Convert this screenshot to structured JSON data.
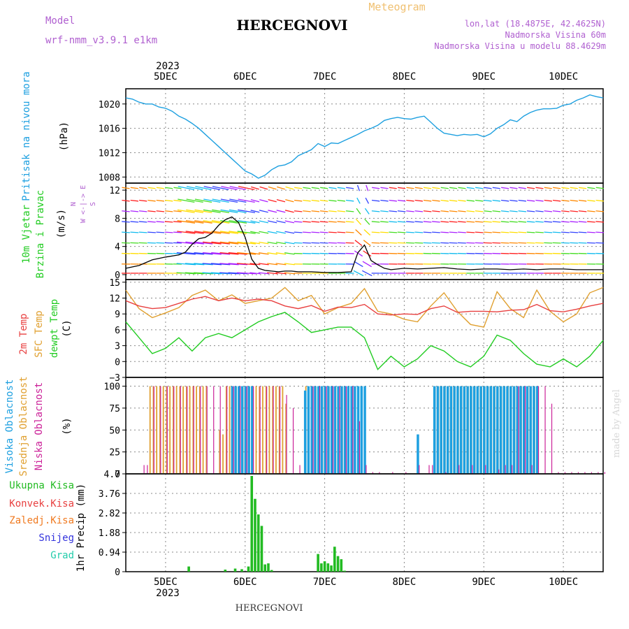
{
  "header": {
    "model_label": "Model",
    "model_name": "wrf-nmm_v3.9.1  e1km",
    "location": "HERCEGNOVI",
    "product": "Meteogram",
    "coords": "lon,lat (18.4875E, 42.4625N)",
    "elevation": "Nadmorska Visina 60m",
    "model_elevation": "Nadmorska Visina u modelu 88.4629m"
  },
  "time_axis": {
    "year": "2023",
    "day_labels": [
      "5DEC",
      "6DEC",
      "7DEC",
      "8DEC",
      "9DEC",
      "10DEC"
    ]
  },
  "footer": {
    "location": "HERCEGNOVI",
    "credit": "made by Angel"
  },
  "colors": {
    "pressure": "#1ea0e0",
    "wind_speed": "#000000",
    "gust": "#e03030",
    "temp2m": "#e84040",
    "sfc_temp": "#e0a030",
    "dewpt": "#22cc22",
    "high_cloud": "#1ea0e0",
    "mid_cloud": "#e0a030",
    "low_cloud": "#cc2299",
    "total_precip": "#22bb22",
    "conv_precip": "#e84040",
    "frozen": "#f07a20",
    "snow": "#3333dd",
    "hail": "#22ccaa"
  },
  "panels": {
    "pressure": {
      "labels": [
        {
          "text": "Pritisak na nivou mora",
          "color": "#1ea0e0"
        }
      ],
      "unit": "(hPa)",
      "ticks": [
        "1008",
        "1012",
        "1016",
        "1020"
      ]
    },
    "wind": {
      "labels": [
        {
          "text": "10m Vjetar",
          "color": "#22cc22"
        },
        {
          "text": "Brzina i Pravac",
          "color": "#22cc22"
        }
      ],
      "unit": "(m/s)",
      "ticks": [
        "0",
        "4",
        "8",
        "12"
      ],
      "compass": [
        "N",
        "W <-|-> E",
        "S"
      ]
    },
    "temp": {
      "labels": [
        {
          "text": "2m Temp",
          "color": "#e84040"
        },
        {
          "text": "SFC Temp",
          "color": "#e0a030"
        },
        {
          "text": "dewpt Temp",
          "color": "#22cc22"
        }
      ],
      "unit": "(C)",
      "ticks": [
        "−3",
        "0",
        "3",
        "6",
        "9",
        "12",
        "15"
      ]
    },
    "cloud": {
      "labels": [
        {
          "text": "Visoka Oblacnost",
          "color": "#1ea0e0"
        },
        {
          "text": "Srednja Oblacnost",
          "color": "#e0a030"
        },
        {
          "text": "Niska Oblacnost",
          "color": "#cc2299"
        }
      ],
      "unit": "(%)",
      "ticks": [
        "0",
        "25",
        "50",
        "75",
        "100"
      ]
    },
    "precip": {
      "labels": [
        {
          "text": "Ukupna Kisa",
          "color": "#22bb22"
        },
        {
          "text": "Konvek.Kisa",
          "color": "#e84040"
        },
        {
          "text": "Zaledj.Kisa",
          "color": "#f07a20"
        },
        {
          "text": "Snijeg",
          "color": "#3333dd"
        },
        {
          "text": "Grad",
          "color": "#22ccaa"
        }
      ],
      "unit": "1hr Precip (mm)",
      "ticks": [
        "0",
        "0.94",
        "1.88",
        "2.82",
        "3.76",
        "4.7"
      ]
    }
  },
  "chart_data": {
    "type": "line",
    "x_unit": "hours since 2023-12-04 12:00 UTC",
    "x_range": [
      0,
      144
    ],
    "pressure": {
      "ylim": [
        1007,
        1022.5
      ],
      "x": [
        0,
        2,
        4,
        6,
        8,
        10,
        12,
        14,
        16,
        18,
        20,
        22,
        24,
        26,
        28,
        30,
        32,
        34,
        36,
        38,
        40,
        42,
        44,
        46,
        48,
        50,
        52,
        54,
        56,
        58,
        60,
        62,
        64,
        66,
        68,
        70,
        72,
        74,
        76,
        78,
        80,
        82,
        84,
        86,
        88,
        90,
        92,
        94,
        96,
        98,
        100,
        102,
        104,
        106,
        108,
        110,
        112,
        114,
        116,
        118,
        120,
        122,
        124,
        126,
        128,
        130,
        132,
        134,
        136,
        138,
        140,
        142,
        144
      ],
      "y": [
        1021,
        1020.8,
        1020.3,
        1020,
        1020,
        1019.5,
        1019.3,
        1018.8,
        1018,
        1017.5,
        1016.8,
        1016,
        1015,
        1014,
        1013,
        1012,
        1011,
        1010,
        1009,
        1008.5,
        1007.8,
        1008.3,
        1009.2,
        1009.8,
        1010,
        1010.5,
        1011.5,
        1012,
        1012.5,
        1013.5,
        1013,
        1013.6,
        1013.5,
        1014,
        1014.5,
        1015,
        1015.6,
        1016,
        1016.5,
        1017.3,
        1017.6,
        1017.8,
        1017.6,
        1017.5,
        1017.8,
        1018,
        1017,
        1016,
        1015.2,
        1015,
        1014.8,
        1015,
        1014.9,
        1015,
        1014.6,
        1015.1,
        1016,
        1016.6,
        1017.4,
        1017.1,
        1018,
        1018.6,
        1019,
        1019.2,
        1019.2,
        1019.3,
        1019.8,
        1020,
        1020.6,
        1021,
        1021.5,
        1021.2,
        1021
      ]
    },
    "wind_speed": {
      "ylim": [
        -0.7,
        13
      ],
      "x": [
        0,
        4,
        8,
        12,
        16,
        18,
        20,
        22,
        24,
        26,
        28,
        30,
        32,
        34,
        36,
        38,
        40,
        42,
        44,
        46,
        48,
        50,
        52,
        56,
        60,
        64,
        68,
        70,
        72,
        74,
        76,
        78,
        80,
        84,
        88,
        92,
        96,
        100,
        104,
        108,
        112,
        116,
        120,
        124,
        128,
        132,
        136,
        140,
        144
      ],
      "y": [
        0.9,
        1.3,
        2.1,
        2.5,
        2.8,
        3.2,
        4.3,
        5.1,
        5.3,
        5.9,
        7.0,
        7.8,
        8.2,
        7.4,
        5.3,
        2.2,
        0.9,
        0.6,
        0.5,
        0.4,
        0.5,
        0.5,
        0.4,
        0.4,
        0.3,
        0.3,
        0.4,
        3.1,
        4.2,
        2.0,
        1.4,
        0.9,
        0.7,
        0.9,
        0.8,
        0.9,
        1.0,
        0.8,
        0.7,
        0.8,
        0.8,
        0.7,
        0.8,
        0.7,
        0.8,
        0.8,
        0.7,
        0.7,
        0.7
      ]
    },
    "temperature": {
      "ylim": [
        -3,
        15.5
      ],
      "x": [
        0,
        4,
        8,
        12,
        16,
        20,
        24,
        28,
        32,
        36,
        40,
        44,
        48,
        52,
        56,
        60,
        64,
        68,
        72,
        76,
        80,
        84,
        88,
        92,
        96,
        100,
        104,
        108,
        112,
        116,
        120,
        124,
        128,
        132,
        136,
        140,
        144
      ],
      "temp2m": [
        11.5,
        10.5,
        10,
        10.2,
        11,
        11.8,
        12.3,
        11.5,
        12,
        11.5,
        11.8,
        11.5,
        10.5,
        10,
        10.6,
        9.5,
        10.3,
        10.2,
        10.8,
        9,
        8.8,
        9,
        8.9,
        10,
        10.5,
        9.3,
        9.5,
        9.5,
        9.4,
        9.7,
        9.8,
        10.8,
        9.6,
        9.4,
        9.9,
        10.5,
        11
      ],
      "sfc_temp": [
        13.5,
        10,
        8.3,
        9.2,
        10.2,
        12.5,
        13.5,
        11.5,
        12.6,
        11,
        11.5,
        12,
        14,
        11.5,
        12.5,
        9,
        10.2,
        11,
        13.8,
        9.5,
        9,
        8,
        7.5,
        10.5,
        13,
        9.5,
        7,
        6.5,
        13.2,
        10,
        8.3,
        13.5,
        9.5,
        7.5,
        9,
        13,
        14
      ],
      "dewpt": [
        7.5,
        4.5,
        1.5,
        2.5,
        4.5,
        2,
        4.5,
        5.3,
        4.5,
        6,
        7.5,
        8.5,
        9.3,
        7.5,
        5.5,
        6,
        6.5,
        6.5,
        4.5,
        -1.5,
        1,
        -1,
        0.5,
        3,
        2,
        0,
        -1,
        1,
        5,
        4,
        1.5,
        -0.5,
        -1,
        0.5,
        -1,
        1,
        4
      ]
    },
    "cloud_cover": {
      "ylim": [
        0,
        110
      ],
      "bars": [
        {
          "type": "mid",
          "x": [
            7,
            8,
            9,
            10,
            11,
            12,
            13,
            14,
            15,
            16,
            17,
            18,
            19,
            20,
            21,
            22,
            23,
            24,
            28,
            29,
            30,
            31,
            32,
            33,
            34,
            35,
            36,
            37,
            38,
            39,
            40,
            41,
            42,
            43,
            44,
            45,
            46,
            47,
            48,
            54,
            56,
            57,
            58,
            59,
            60,
            61,
            62,
            63,
            64,
            65,
            66,
            70,
            93,
            94,
            95,
            96,
            97,
            98,
            99,
            100,
            101,
            102,
            103,
            104,
            105,
            106,
            107,
            108,
            109,
            110,
            111,
            112,
            113,
            114,
            115,
            116,
            117,
            118,
            119,
            120,
            121,
            122,
            123
          ],
          "y": [
            100,
            100,
            100,
            100,
            100,
            100,
            100,
            100,
            100,
            100,
            100,
            100,
            100,
            100,
            100,
            100,
            100,
            100,
            50,
            45,
            100,
            100,
            100,
            100,
            100,
            100,
            100,
            100,
            100,
            100,
            100,
            100,
            100,
            100,
            100,
            100,
            100,
            100,
            80,
            100,
            100,
            100,
            100,
            100,
            100,
            100,
            100,
            100,
            100,
            100,
            100,
            50,
            100,
            100,
            100,
            100,
            100,
            100,
            100,
            100,
            100,
            100,
            100,
            100,
            100,
            100,
            100,
            100,
            100,
            100,
            100,
            100,
            100,
            100,
            100,
            100,
            100,
            100,
            100,
            100,
            100,
            100,
            100
          ]
        },
        {
          "type": "high",
          "x": [
            32,
            33,
            34,
            35,
            36,
            37,
            38,
            54,
            55,
            56,
            57,
            58,
            59,
            60,
            61,
            62,
            63,
            64,
            65,
            66,
            67,
            68,
            69,
            70,
            71,
            72,
            88,
            93,
            94,
            95,
            96,
            97,
            98,
            99,
            100,
            101,
            102,
            103,
            104,
            105,
            106,
            107,
            108,
            109,
            110,
            111,
            112,
            113,
            114,
            115,
            116,
            117,
            118,
            119,
            120,
            121,
            122,
            123,
            124
          ],
          "y": [
            100,
            100,
            100,
            100,
            100,
            100,
            100,
            95,
            100,
            100,
            100,
            100,
            100,
            100,
            100,
            100,
            100,
            100,
            100,
            100,
            100,
            100,
            100,
            100,
            100,
            100,
            45,
            100,
            100,
            100,
            100,
            100,
            100,
            100,
            100,
            100,
            100,
            100,
            100,
            100,
            100,
            100,
            100,
            100,
            100,
            100,
            100,
            100,
            100,
            100,
            100,
            100,
            100,
            100,
            100,
            100,
            100,
            100,
            100
          ]
        },
        {
          "type": "low",
          "x": [
            5,
            6,
            8,
            10,
            12,
            14,
            16,
            18,
            20,
            22,
            24,
            26,
            28,
            30,
            32,
            34,
            36,
            38,
            40,
            42,
            44,
            46,
            48,
            50,
            52,
            56,
            58,
            60,
            62,
            64,
            66,
            68,
            70,
            72,
            74,
            76,
            80,
            84,
            88,
            91,
            92,
            96,
            100,
            104,
            108,
            112,
            114,
            116,
            118,
            120,
            122,
            124,
            126,
            128,
            130,
            132,
            134,
            136,
            138,
            140,
            142,
            144
          ],
          "y": [
            10,
            10,
            100,
            100,
            100,
            100,
            100,
            100,
            100,
            100,
            100,
            100,
            100,
            100,
            100,
            100,
            100,
            100,
            100,
            100,
            100,
            100,
            90,
            75,
            10,
            100,
            100,
            100,
            100,
            100,
            100,
            100,
            60,
            10,
            2,
            2,
            2,
            2,
            10,
            10,
            10,
            2,
            10,
            10,
            10,
            5,
            10,
            10,
            100,
            100,
            10,
            100,
            100,
            80,
            2,
            2,
            2,
            2,
            2,
            2,
            2,
            2
          ]
        }
      ]
    },
    "precip": {
      "ylim": [
        0,
        4.7
      ],
      "x": [
        19,
        30,
        33,
        35,
        37,
        38,
        39,
        40,
        41,
        42,
        43,
        44,
        58,
        59,
        60,
        61,
        62,
        63,
        64,
        65,
        66
      ],
      "y": [
        0.25,
        0.1,
        0.15,
        0.12,
        0.25,
        4.6,
        3.5,
        2.75,
        2.2,
        0.35,
        0.4,
        0.08,
        0.85,
        0.4,
        0.5,
        0.4,
        0.3,
        1.2,
        0.75,
        0.6,
        0.05
      ]
    }
  }
}
